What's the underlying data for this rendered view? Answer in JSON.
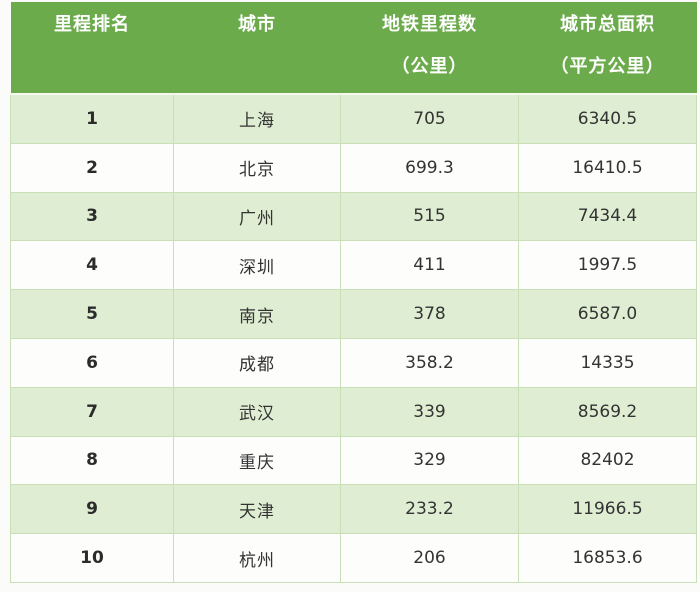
{
  "colors": {
    "header_background": "#6cab4c",
    "header_text": "#ffffff",
    "row_alt_background": "#dfeed3",
    "row_background": "#fdfdfc",
    "cell_border": "#c8dfb8",
    "body_text": "#333333"
  },
  "table": {
    "headers": [
      {
        "line1": "里程排名",
        "line2": ""
      },
      {
        "line1": "城市",
        "line2": ""
      },
      {
        "line1": "地铁里程数",
        "line2": "（公里）"
      },
      {
        "line1": "城市总面积",
        "line2": "（平方公里）"
      }
    ],
    "rows": [
      {
        "rank": "1",
        "city": "上海",
        "mileage": "705",
        "area": "6340.5"
      },
      {
        "rank": "2",
        "city": "北京",
        "mileage": "699.3",
        "area": "16410.5"
      },
      {
        "rank": "3",
        "city": "广州",
        "mileage": "515",
        "area": "7434.4"
      },
      {
        "rank": "4",
        "city": "深圳",
        "mileage": "411",
        "area": "1997.5"
      },
      {
        "rank": "5",
        "city": "南京",
        "mileage": "378",
        "area": "6587.0"
      },
      {
        "rank": "6",
        "city": "成都",
        "mileage": "358.2",
        "area": "14335"
      },
      {
        "rank": "7",
        "city": "武汉",
        "mileage": "339",
        "area": "8569.2"
      },
      {
        "rank": "8",
        "city": "重庆",
        "mileage": "329",
        "area": "82402"
      },
      {
        "rank": "9",
        "city": "天津",
        "mileage": "233.2",
        "area": "11966.5"
      },
      {
        "rank": "10",
        "city": "杭州",
        "mileage": "206",
        "area": "16853.6"
      }
    ]
  },
  "chart_data": {
    "type": "table",
    "title": "",
    "columns": [
      "里程排名",
      "城市",
      "地铁里程数（公里）",
      "城市总面积（平方公里）"
    ],
    "ranks": [
      1,
      2,
      3,
      4,
      5,
      6,
      7,
      8,
      9,
      10
    ],
    "cities": [
      "上海",
      "北京",
      "广州",
      "深圳",
      "南京",
      "成都",
      "武汉",
      "重庆",
      "天津",
      "杭州"
    ],
    "metro_mileage_km": [
      705,
      699.3,
      515,
      411,
      378,
      358.2,
      339,
      329,
      233.2,
      206
    ],
    "city_area_sqkm": [
      6340.5,
      16410.5,
      7434.4,
      1997.5,
      6587.0,
      14335,
      8569.2,
      82402,
      11966.5,
      16853.6
    ]
  }
}
